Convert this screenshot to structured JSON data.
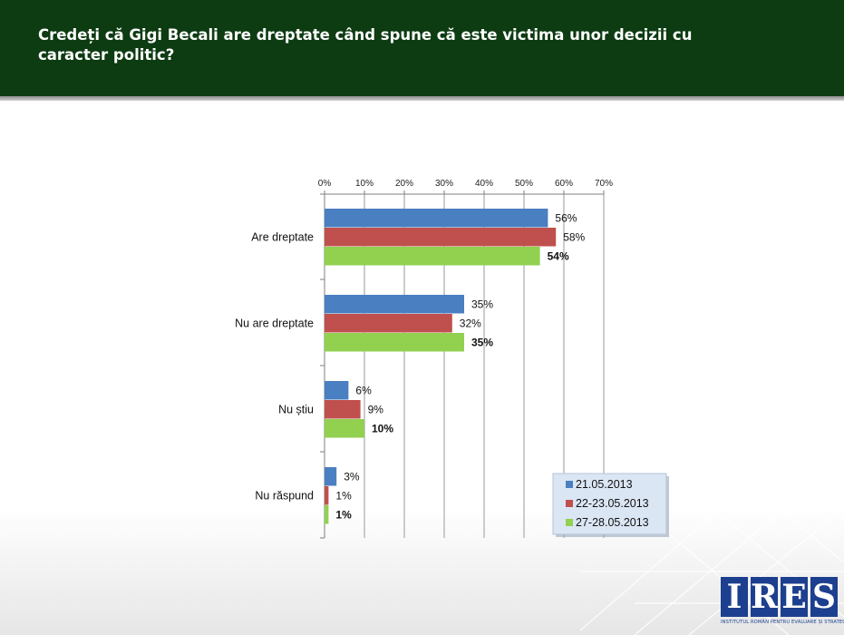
{
  "page": {
    "title": "Credeți că Gigi Becali are dreptate când spune că este victima unor decizii cu caracter politic?"
  },
  "logo": {
    "letters": [
      "I",
      "R",
      "E",
      "S"
    ],
    "subtitle": "INSTITUTUL ROMÂN PENTRU EVALUARE ȘI STRATEGIE"
  },
  "colors": {
    "header_bg": "#0d3b12",
    "series": [
      "#4a7fc1",
      "#c0504d",
      "#92d050"
    ]
  },
  "chart_data": {
    "type": "bar",
    "orientation": "horizontal",
    "title": "",
    "xlabel": "",
    "ylabel": "",
    "xlim": [
      0,
      70
    ],
    "x_ticks": [
      "0%",
      "10%",
      "20%",
      "30%",
      "40%",
      "50%",
      "60%",
      "70%"
    ],
    "x_axis_position": "top",
    "grid": true,
    "categories": [
      "Are dreptate",
      "Nu are dreptate",
      "Nu știu",
      "Nu răspund"
    ],
    "series": [
      {
        "name": "21.05.2013",
        "values": [
          56,
          35,
          6,
          3
        ],
        "labels": [
          "56%",
          "35%",
          "6%",
          "3%"
        ],
        "color": "#4a7fc1",
        "bold_labels": false
      },
      {
        "name": "22-23.05.2013",
        "values": [
          58,
          32,
          9,
          1
        ],
        "labels": [
          "58%",
          "32%",
          "9%",
          "1%"
        ],
        "color": "#c0504d",
        "bold_labels": false
      },
      {
        "name": "27-28.05.2013",
        "values": [
          54,
          35,
          10,
          1
        ],
        "labels": [
          "54%",
          "35%",
          "10%",
          "1%"
        ],
        "color": "#92d050",
        "bold_labels": true
      }
    ],
    "legend_position": "bottom-right"
  }
}
